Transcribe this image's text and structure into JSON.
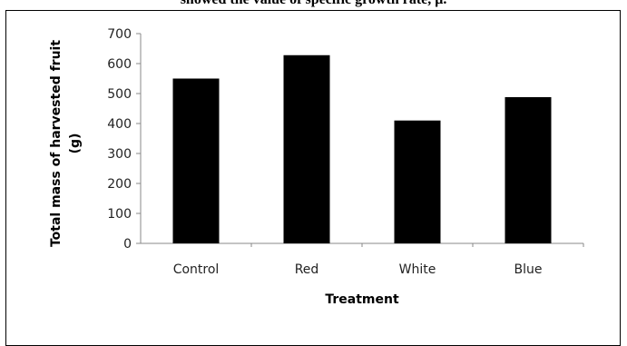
{
  "caption_fragment": "showed the value of specific growth rate, μ.",
  "chart_data": {
    "type": "bar",
    "categories": [
      "Control",
      "Red",
      "White",
      "Blue"
    ],
    "values": [
      550,
      628,
      410,
      488
    ],
    "xlabel": "Treatment",
    "ylabel": "Total mass of harvested fruit (g)",
    "ylabel_lines": [
      "Total mass of harvested fruit",
      "(g)"
    ],
    "ylim": [
      0,
      700
    ],
    "yticks": [
      0,
      100,
      200,
      300,
      400,
      500,
      600,
      700
    ],
    "bar_color": "#000000",
    "grid": false,
    "legend": "none"
  }
}
